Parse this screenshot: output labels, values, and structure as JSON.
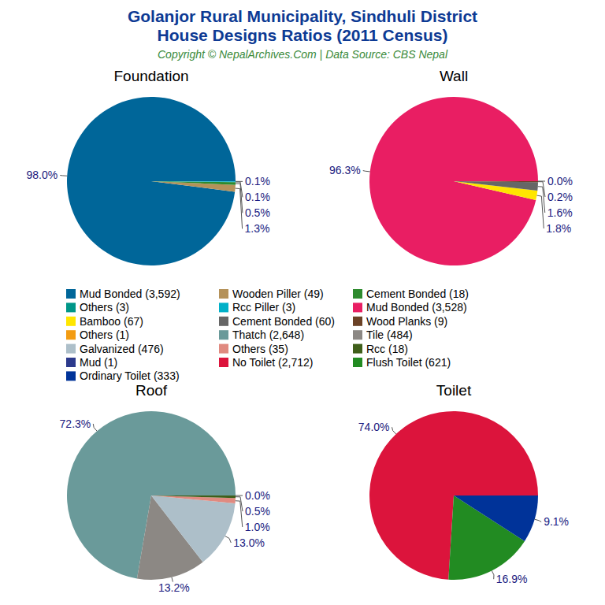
{
  "title": [
    "Golanjor Rural Municipality, Sindhuli District",
    "House Designs Ratios (2011 Census)"
  ],
  "subtitle": "Copyright © NepalArchives.Com | Data Source: CBS Nepal",
  "chart_data": [
    {
      "type": "pie",
      "title": "Foundation",
      "categories": [
        "Mud Bonded (3,592)",
        "Wooden Piller (49)",
        "Cement Bonded (18)",
        "Others (3)",
        "Rcc Piller (3)"
      ],
      "values": [
        98.0,
        1.3,
        0.5,
        0.1,
        0.1
      ],
      "value_labels": [
        "98.0%",
        "1.3%",
        "0.5%",
        "0.1%",
        "0.1%"
      ],
      "colors": [
        "#006699",
        "#b5925a",
        "#2e8b2e",
        "#009688",
        "#00b0c8"
      ],
      "data_labels": true
    },
    {
      "type": "pie",
      "title": "Wall",
      "categories": [
        "Mud Bonded (3,528)",
        "Bamboo (67)",
        "Cement Bonded (60)",
        "Wood Planks (9)",
        "Others (1)"
      ],
      "values": [
        96.3,
        1.8,
        1.6,
        0.2,
        0.0
      ],
      "value_labels": [
        "96.3%",
        "1.8%",
        "1.6%",
        "0.2%",
        "0.0%"
      ],
      "colors": [
        "#e91e63",
        "#ffe600",
        "#666666",
        "#6b4226",
        "#f39c12"
      ],
      "data_labels": true
    },
    {
      "type": "pie",
      "title": "Roof",
      "categories": [
        "Thatch (2,648)",
        "Tile (484)",
        "Galvanized (476)",
        "Others (35)",
        "Rcc (18)",
        "Mud (1)"
      ],
      "values": [
        72.3,
        13.2,
        13.0,
        1.0,
        0.5,
        0.0
      ],
      "value_labels": [
        "72.3%",
        "13.2%",
        "13.0%",
        "1.0%",
        "0.5%",
        "0.0%"
      ],
      "colors": [
        "#6a9a9a",
        "#8c8884",
        "#adbfc9",
        "#e08a80",
        "#3f5f1a",
        "#2c3a8c"
      ],
      "data_labels": true
    },
    {
      "type": "pie",
      "title": "Toilet",
      "categories": [
        "No Toilet (2,712)",
        "Flush Toilet (621)",
        "Ordinary Toilet (333)"
      ],
      "values": [
        74.0,
        16.9,
        9.1
      ],
      "value_labels": [
        "74.0%",
        "16.9%",
        "9.1%"
      ],
      "colors": [
        "#dc143c",
        "#228b22",
        "#003399"
      ],
      "data_labels": true
    }
  ]
}
